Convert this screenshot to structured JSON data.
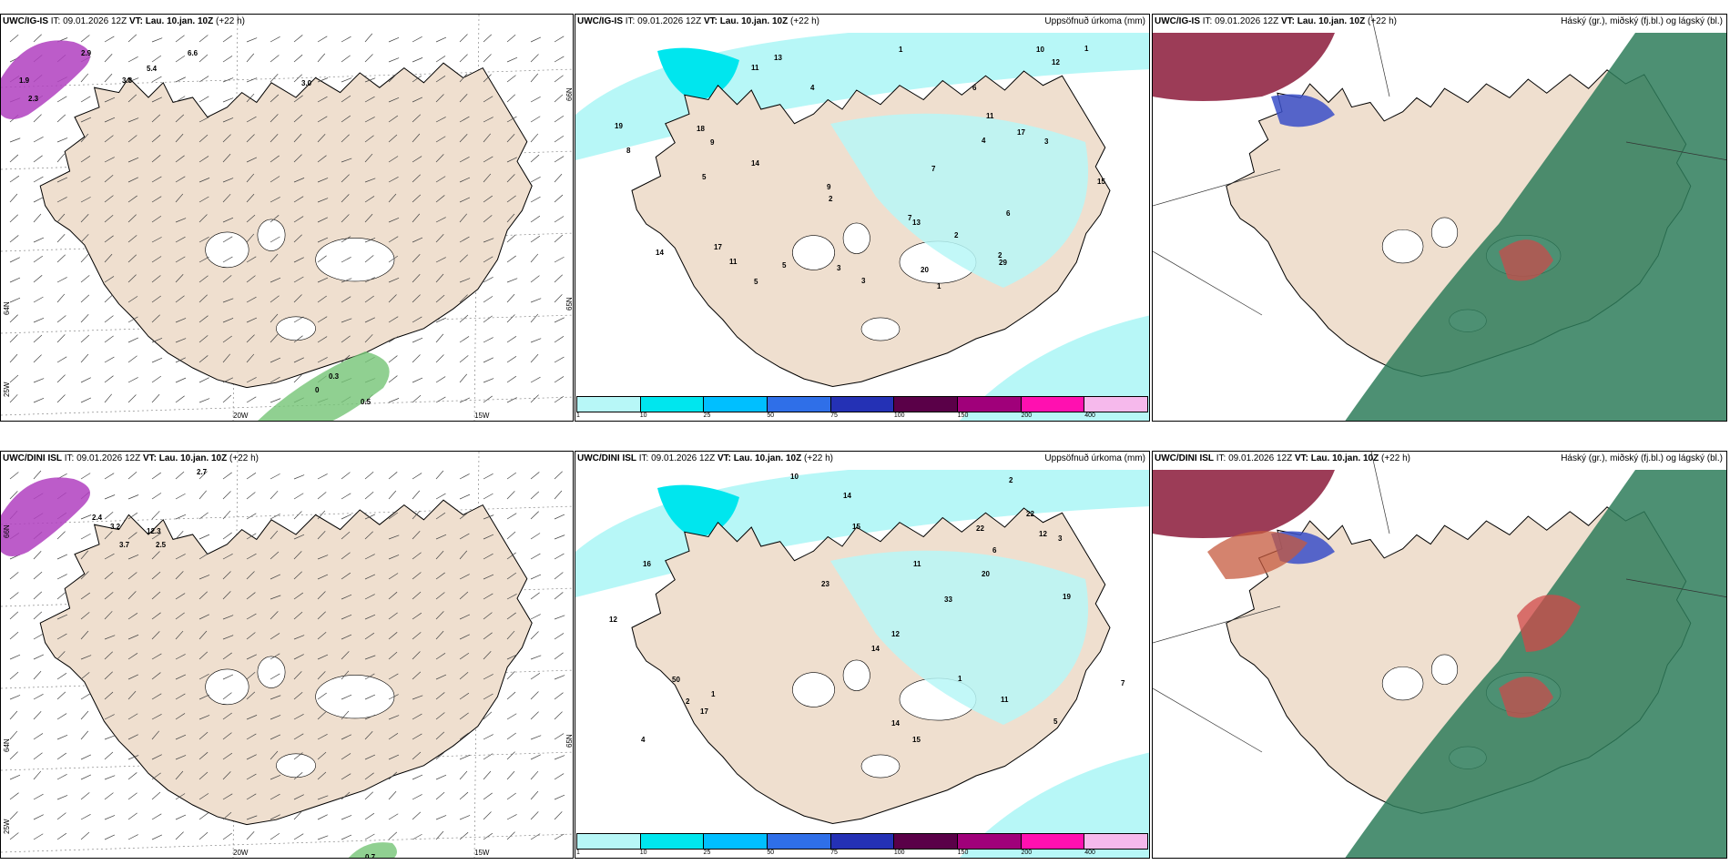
{
  "panels": [
    {
      "model": "UWC/IG-IS",
      "it": "IT: 09.01.2026 12Z",
      "vt_label": "VT:",
      "vt": "Lau. 10.jan. 10Z",
      "lead": "(+22 h)",
      "right": ""
    },
    {
      "model": "UWC/IG-IS",
      "it": "IT: 09.01.2026 12Z",
      "vt_label": "VT:",
      "vt": "Lau. 10.jan. 10Z",
      "lead": "(+22 h)",
      "right": "Uppsöfnuð úrkoma (mm)"
    },
    {
      "model": "UWC/IG-IS",
      "it": "IT: 09.01.2026 12Z",
      "vt_label": "VT:",
      "vt": "Lau. 10.jan. 10Z",
      "lead": "(+22 h)",
      "right": "Háský (gr.), miðský (fj.bl.) og lágský (bl.)"
    },
    {
      "model": "UWC/DINI ISL",
      "it": "IT: 09.01.2026 12Z",
      "vt_label": "VT:",
      "vt": "Lau. 10.jan. 10Z",
      "lead": "(+22 h)",
      "right": ""
    },
    {
      "model": "UWC/DINI ISL",
      "it": "IT: 09.01.2026 12Z",
      "vt_label": "VT:",
      "vt": "Lau. 10.jan. 10Z",
      "lead": "(+22 h)",
      "right": "Uppsöfnuð úrkoma (mm)"
    },
    {
      "model": "UWC/DINI ISL",
      "it": "IT: 09.01.2026 12Z",
      "vt_label": "VT:",
      "vt": "Lau. 10.jan. 10Z",
      "lead": "(+22 h)",
      "right": "Háský (gr.), miðský (fj.bl.) og lágský (bl.)"
    }
  ],
  "axis_labels": {
    "lon_20w": "20W",
    "lon_15w": "15W",
    "lat_65n": "65N",
    "lat_66n": "66N",
    "lat_64n": "64N",
    "lon_25w": "25W"
  },
  "colorbar": {
    "labels": [
      "1",
      "10",
      "25",
      "50",
      "75",
      "100",
      "150",
      "200",
      "400"
    ],
    "colors": [
      "#b7f7f7",
      "#00e6ee",
      "#00bfff",
      "#2f6fe8",
      "#2431b5",
      "#5a0048",
      "#a0007a",
      "#ff10b0",
      "#f6b9ec"
    ]
  },
  "map_colors": {
    "land": "#efdfcf",
    "sea": "#ffffff",
    "snow": "#ffffff",
    "precip_light": "#b7f7f7",
    "precip_mid": "#00e6ee",
    "purple": "#b040c0",
    "green_precip": "#74c476",
    "high_cloud": "#2e7d5b",
    "mid_cloud": "#8b1a3a",
    "low_cloud": "#3a4fc8"
  },
  "precip_top_labels": [
    "1",
    "11",
    "17",
    "18",
    "17",
    "20",
    "15",
    "14",
    "2",
    "11",
    "14",
    "19",
    "9",
    "7",
    "4",
    "10",
    "8",
    "12",
    "6",
    "3",
    "2",
    "13",
    "5",
    "29",
    "7",
    "11",
    "5",
    "9",
    "3",
    "4",
    "2",
    "1",
    "6",
    "5",
    "13",
    "3",
    "1"
  ],
  "precip_bottom_labels": [
    "1",
    "16",
    "2",
    "22",
    "11",
    "17",
    "14",
    "7",
    "19",
    "23",
    "15",
    "14",
    "11",
    "6",
    "12",
    "3",
    "2",
    "1",
    "4",
    "12",
    "5",
    "20",
    "22",
    "12",
    "50",
    "15",
    "14",
    "33",
    "10"
  ],
  "wind_top_labels": [
    "2.9",
    "6.6",
    "3.8",
    "5.4",
    "2.3",
    "1.9",
    "3.0",
    "0.5",
    "0.3",
    "0"
  ],
  "wind_bottom_labels": [
    "2.7",
    "2.4",
    "3.2",
    "12.3",
    "3.7",
    "2.5",
    "0.7"
  ]
}
